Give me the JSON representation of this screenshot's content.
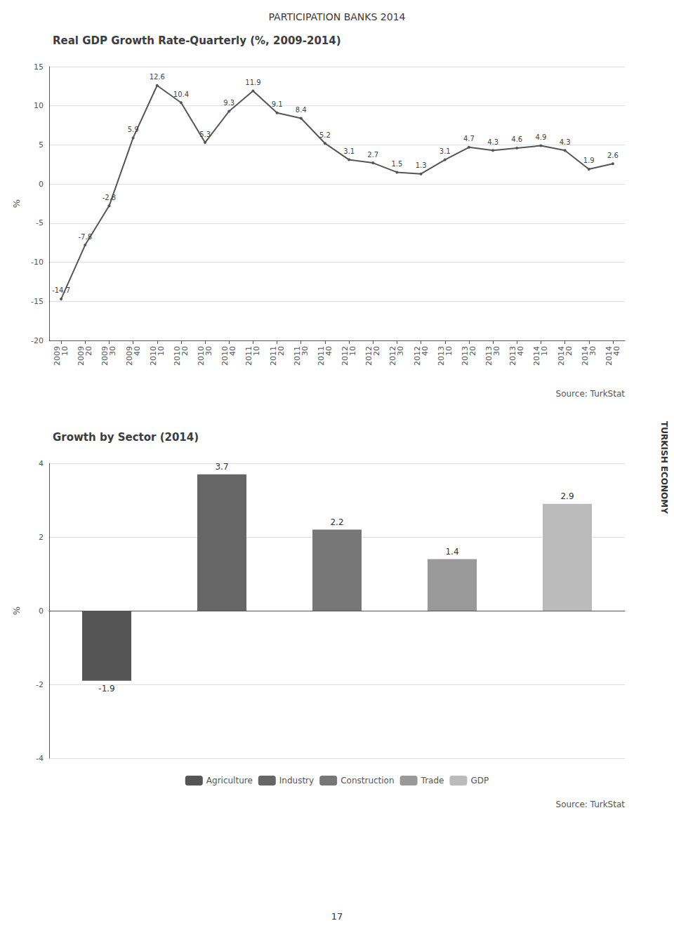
{
  "title": "PARTICIPATION BANKS 2014",
  "annotations": [
    "TURKISH ECONOMY",
    "17"
  ],
  "chart_data": [
    {
      "type": "line",
      "title": "Real GDP Growth Rate-Quarterly (%, 2009-2014)",
      "categories": [
        "2009 10",
        "2009 20",
        "2009 30",
        "2009 40",
        "2010 10",
        "2010 20",
        "2010 30",
        "2010 40",
        "2011 10",
        "2011 20",
        "2011 30",
        "2011 40",
        "2012 10",
        "2012 20",
        "2012 30",
        "2012 40",
        "2013 10",
        "2013 20",
        "2013 30",
        "2013 40",
        "2014 10",
        "2014 20",
        "2014 30",
        "2014 40"
      ],
      "values": [
        -14.7,
        -7.8,
        -2.8,
        5.9,
        12.6,
        10.4,
        5.3,
        9.3,
        11.9,
        9.1,
        8.4,
        5.2,
        3.1,
        2.7,
        1.5,
        1.3,
        3.1,
        4.7,
        4.3,
        4.6,
        4.9,
        4.3,
        1.9,
        2.6
      ],
      "color": "#555555",
      "ylabel": "%",
      "ylim": [
        -20,
        15
      ],
      "yticks": [
        -20,
        -15,
        -10,
        -5,
        0,
        5,
        10,
        15
      ],
      "grid": true,
      "data_labels": true,
      "annotations": [
        "Source: TurkStat"
      ]
    },
    {
      "type": "bar",
      "title": "Growth by Sector (2014)",
      "categories": [
        "Agriculture",
        "Industry",
        "Construction",
        "Trade",
        "GDP"
      ],
      "values": [
        -1.9,
        3.7,
        2.2,
        1.4,
        2.9
      ],
      "colors": [
        "#555555",
        "#666666",
        "#777777",
        "#999999",
        "#bbbbbb"
      ],
      "ylabel": "%",
      "ylim": [
        -4,
        4
      ],
      "yticks": [
        -4,
        -2,
        0,
        2,
        4
      ],
      "grid": true,
      "data_labels": true,
      "tick_labels": "y",
      "legend": "bottom",
      "annotations": [
        "Source: TurkStat"
      ]
    }
  ]
}
